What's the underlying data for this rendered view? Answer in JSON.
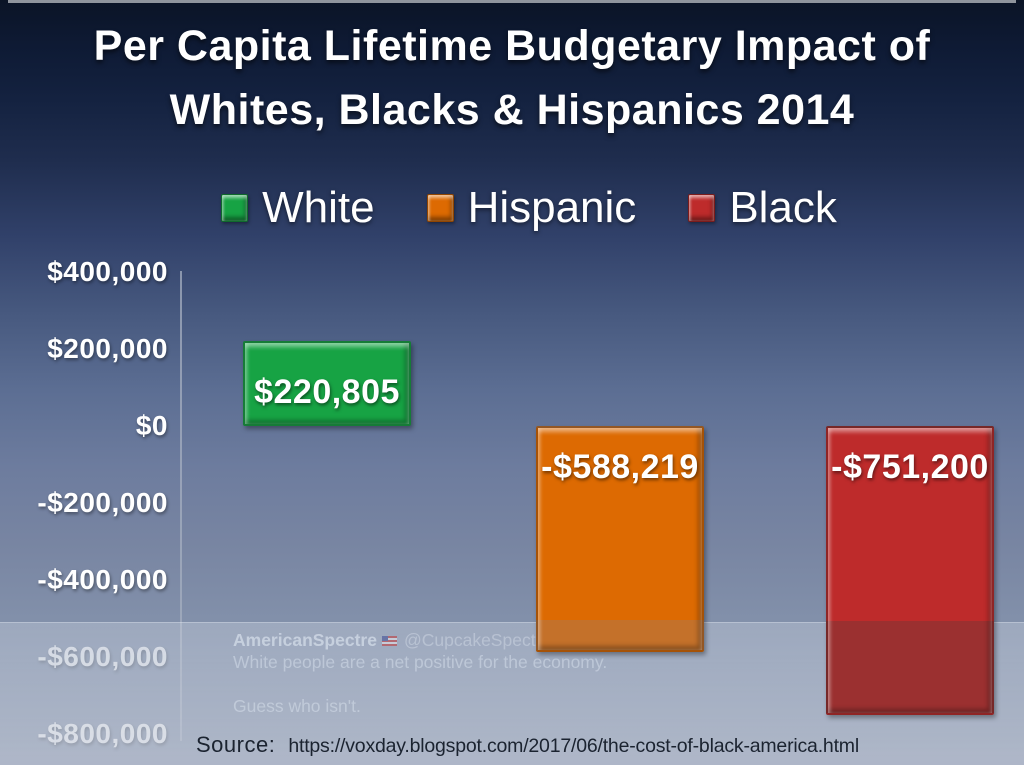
{
  "title": {
    "line1": "Per Capita Lifetime Budgetary Impact of",
    "line2": "Whites, Blacks & Hispanics 2014"
  },
  "legend": [
    {
      "label": "White",
      "color": "#17a344"
    },
    {
      "label": "Hispanic",
      "color": "#dd6a02"
    },
    {
      "label": "Black",
      "color": "#be2b2b"
    }
  ],
  "chart_data": {
    "type": "bar",
    "title": "Per Capita Lifetime Budgetary Impact of Whites, Blacks & Hispanics 2014",
    "categories": [
      "White",
      "Hispanic",
      "Black"
    ],
    "values": [
      220805,
      -588219,
      -751200
    ],
    "value_labels": [
      "$220,805",
      "-$588,219",
      "-$751,200"
    ],
    "colors": [
      "#17a344",
      "#dd6a02",
      "#be2b2b"
    ],
    "shade_colors": [
      "#128038",
      "#c4712a",
      "#9b3030"
    ],
    "ylim": [
      -800000,
      400000
    ],
    "yticks": [
      {
        "value": 400000,
        "label": "$400,000"
      },
      {
        "value": 200000,
        "label": "$200,000"
      },
      {
        "value": 0,
        "label": "$0"
      },
      {
        "value": -200000,
        "label": "-$200,000"
      },
      {
        "value": -400000,
        "label": "-$400,000"
      },
      {
        "value": -600000,
        "label": "-$600,000"
      },
      {
        "value": -800000,
        "label": "-$800,000"
      }
    ],
    "legend_position": "top",
    "grid": false
  },
  "watermark": {
    "author": "AmericanSpectre",
    "handle": "@CupcakeSpectre · 3h",
    "line1": "White people are a net positive for the economy.",
    "line2": "Guess who isn't."
  },
  "source": {
    "label": "Source:",
    "url": "https://voxday.blogspot.com/2017/06/the-cost-of-black-america.html"
  }
}
